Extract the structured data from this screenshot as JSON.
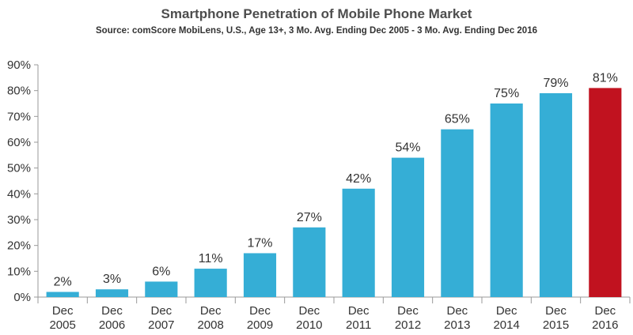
{
  "chart_data": {
    "type": "bar",
    "title": "Smartphone Penetration of Mobile Phone Market",
    "subtitle": "Source: comScore MobiLens, U.S., Age 13+, 3 Mo. Avg. Ending Dec 2005 - 3 Mo. Avg. Ending Dec 2016",
    "categories": [
      [
        "Dec",
        "2005"
      ],
      [
        "Dec",
        "2006"
      ],
      [
        "Dec",
        "2007"
      ],
      [
        "Dec",
        "2008"
      ],
      [
        "Dec",
        "2009"
      ],
      [
        "Dec",
        "2010"
      ],
      [
        "Dec",
        "2011"
      ],
      [
        "Dec",
        "2012"
      ],
      [
        "Dec",
        "2013"
      ],
      [
        "Dec",
        "2014"
      ],
      [
        "Dec",
        "2015"
      ],
      [
        "Dec",
        "2016"
      ]
    ],
    "values": [
      2,
      3,
      6,
      11,
      17,
      27,
      42,
      54,
      65,
      75,
      79,
      81
    ],
    "data_labels": [
      "2%",
      "3%",
      "6%",
      "11%",
      "17%",
      "27%",
      "42%",
      "54%",
      "65%",
      "75%",
      "79%",
      "81%"
    ],
    "ylim": [
      0,
      90
    ],
    "yticks": [
      "0%",
      "10%",
      "20%",
      "30%",
      "40%",
      "50%",
      "60%",
      "70%",
      "80%",
      "90%"
    ],
    "xlabel": "",
    "ylabel": "",
    "grid": false,
    "legend": "none",
    "colors": {
      "bar": "#35aed6",
      "highlight": "#c1121f",
      "highlight_index": 11,
      "axis": "#999999"
    }
  }
}
